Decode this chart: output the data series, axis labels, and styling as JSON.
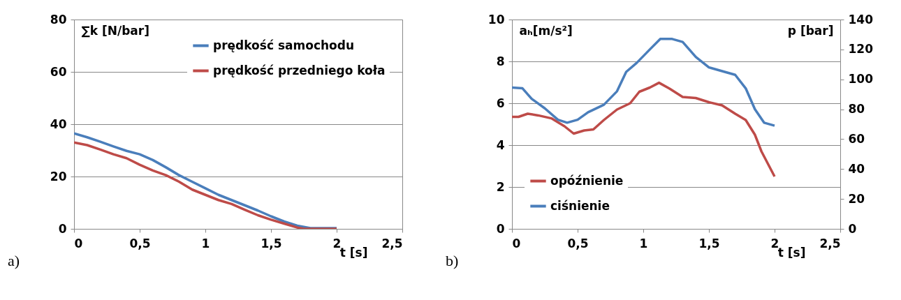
{
  "chart_data": [
    {
      "type": "line",
      "xlabel": "t [s]",
      "ylabel": "∑k [N/bar]",
      "xlim": [
        0,
        2.5
      ],
      "xticks": [
        0,
        {
          "value": 0.5,
          "label": "0,5"
        },
        1,
        {
          "value": 1.5,
          "label": "1,5"
        },
        2,
        {
          "value": 2.5,
          "label": "2,5"
        }
      ],
      "ylim": [
        0,
        80
      ],
      "yticks": [
        0,
        20,
        40,
        60,
        80
      ],
      "grid": "y",
      "legend": "top right",
      "marker": "none",
      "line_style": "solid",
      "annotations": [
        "a)"
      ],
      "series": [
        {
          "name": "prędkość samochodu",
          "color": "#4a7ebb",
          "x": [
            0,
            0.1,
            0.2,
            0.3,
            0.4,
            0.5,
            0.6,
            0.7,
            0.8,
            0.9,
            1.0,
            1.1,
            1.2,
            1.3,
            1.4,
            1.5,
            1.6,
            1.7,
            1.8,
            1.9,
            2.0
          ],
          "values": [
            36.5,
            35,
            33.3,
            31.5,
            29.8,
            28.5,
            26.3,
            23.5,
            20.5,
            18,
            15.5,
            13,
            11,
            9,
            7,
            4.8,
            2.8,
            1.2,
            0.3,
            0.3,
            0.3
          ]
        },
        {
          "name": "prędkość przedniego koła",
          "color": "#be4b48",
          "x": [
            0,
            0.1,
            0.2,
            0.3,
            0.4,
            0.5,
            0.6,
            0.7,
            0.8,
            0.9,
            1.0,
            1.1,
            1.2,
            1.3,
            1.4,
            1.5,
            1.6,
            1.7,
            1.75,
            2.0
          ],
          "values": [
            33,
            32,
            30.3,
            28.5,
            27,
            24.5,
            22.3,
            20.5,
            18,
            15,
            13,
            11,
            9.5,
            7.3,
            5.2,
            3.5,
            2,
            0.5,
            0,
            0
          ]
        }
      ]
    },
    {
      "type": "line",
      "xlabel": "t [s]",
      "ylabel": "aₕ[m/s²]",
      "y2label": "p [bar]",
      "xlim": [
        0,
        2.5
      ],
      "xticks": [
        0,
        {
          "value": 0.5,
          "label": "0,5"
        },
        1,
        {
          "value": 1.5,
          "label": "1,5"
        },
        2,
        {
          "value": 2.5,
          "label": "2,5"
        }
      ],
      "ylim": [
        0,
        10
      ],
      "yticks": [
        0,
        2,
        4,
        6,
        8,
        10
      ],
      "y2lim": [
        0,
        140
      ],
      "y2ticks": [
        0,
        20,
        40,
        60,
        80,
        100,
        120,
        140
      ],
      "grid": "y",
      "legend": "bottom left",
      "marker": "none",
      "line_style": "solid",
      "annotations": [
        "b)"
      ],
      "series": [
        {
          "name": "opóźnienie",
          "color": "#be4b48",
          "x": [
            0,
            0.05,
            0.12,
            0.2,
            0.3,
            0.4,
            0.47,
            0.55,
            0.62,
            0.7,
            0.8,
            0.9,
            0.97,
            1.05,
            1.12,
            1.2,
            1.3,
            1.4,
            1.5,
            1.6,
            1.7,
            1.78,
            1.85,
            1.9,
            2.0
          ],
          "values": [
            5.35,
            5.35,
            5.5,
            5.42,
            5.28,
            4.9,
            4.55,
            4.7,
            4.75,
            5.2,
            5.7,
            6.0,
            6.55,
            6.75,
            6.98,
            6.7,
            6.3,
            6.25,
            6.05,
            5.9,
            5.5,
            5.2,
            4.5,
            3.7,
            2.5
          ]
        },
        {
          "name": "ciśnienie",
          "color": "#4a7ebb",
          "axis": "y2",
          "x": [
            0,
            0.08,
            0.15,
            0.25,
            0.35,
            0.42,
            0.5,
            0.58,
            0.7,
            0.8,
            0.87,
            0.95,
            1.05,
            1.13,
            1.22,
            1.3,
            1.4,
            1.5,
            1.62,
            1.7,
            1.78,
            1.85,
            1.92,
            2.0
          ],
          "values": [
            94.5,
            94,
            87,
            80.6,
            73,
            71,
            73,
            78,
            83,
            92,
            105,
            111,
            120,
            127,
            127,
            125,
            115,
            108,
            105,
            103,
            94,
            80,
            71,
            69
          ]
        }
      ]
    }
  ]
}
